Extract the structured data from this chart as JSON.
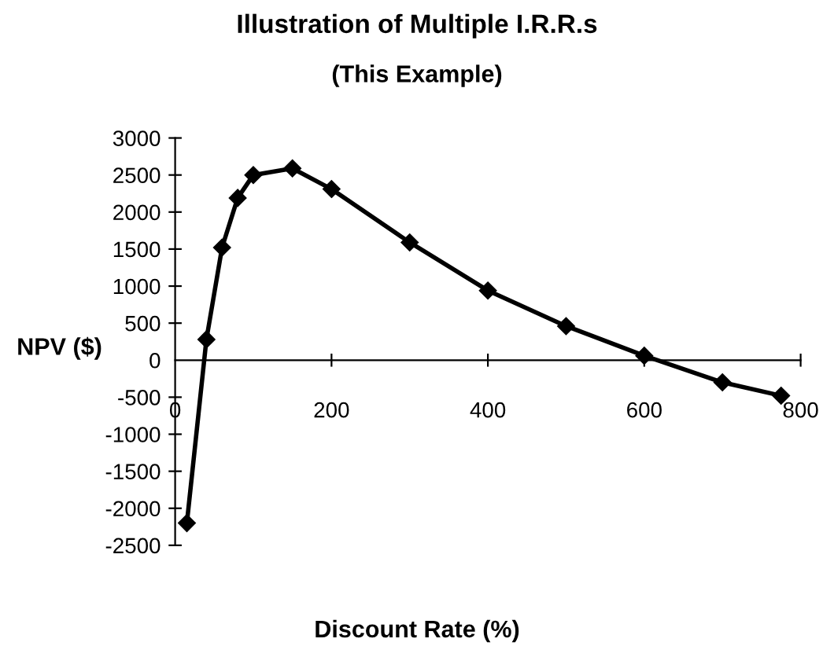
{
  "chart_data": {
    "type": "line",
    "title": "Illustration of Multiple I.R.R.s",
    "subtitle": "(This Example)",
    "xlabel": "Discount Rate (%)",
    "ylabel": "NPV ($)",
    "x": [
      15,
      40,
      60,
      80,
      100,
      150,
      200,
      300,
      400,
      500,
      600,
      700,
      775
    ],
    "series": [
      {
        "color": "#000000",
        "values": [
          -2200,
          280,
          1520,
          2190,
          2500,
          2590,
          2310,
          1590,
          940,
          460,
          60,
          -300,
          -480
        ]
      }
    ],
    "xlim": [
      0,
      800
    ],
    "xticks": [
      0,
      200,
      400,
      600,
      800
    ],
    "ylim": [
      -2500,
      3000
    ],
    "yticks": [
      -2500,
      -2000,
      -1500,
      -1000,
      -500,
      0,
      500,
      1000,
      1500,
      2000,
      2500,
      3000
    ],
    "grid": false,
    "legend": false,
    "marker": "diamond",
    "line_style": "solid"
  }
}
